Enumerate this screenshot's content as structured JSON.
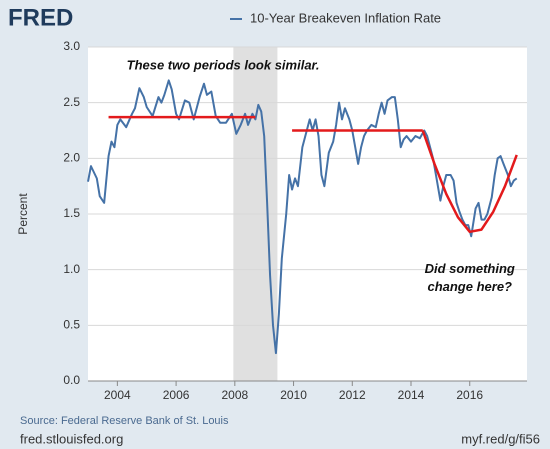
{
  "chart_data": {
    "type": "line",
    "logo": "FRED",
    "ylabel": "Percent",
    "source": "Source: Federal Reserve Bank of St. Louis",
    "footer_left": "fred.stlouisfed.org",
    "footer_right": "myf.red/g/fi56",
    "annotations": [
      {
        "text": "These two periods look similar.",
        "x": 2007.6,
        "y": 2.83
      },
      {
        "lines": [
          "Did something",
          "change here?"
        ],
        "x": 2016.0,
        "y": 1.0
      }
    ],
    "xlim": [
      2003.0,
      2017.95
    ],
    "xticks": [
      2004,
      2006,
      2008,
      2010,
      2012,
      2014,
      2016
    ],
    "ylim": [
      0,
      3
    ],
    "yticks": [
      {
        "value": 0,
        "label": "0.0"
      },
      0.5,
      {
        "value": 1,
        "label": "1.0"
      },
      1.5,
      {
        "value": 2,
        "label": "2.0"
      },
      2.5,
      {
        "value": 3,
        "label": "3.0"
      }
    ],
    "grid": true,
    "shaded_regions": [
      [
        2007.95,
        2009.45
      ]
    ],
    "series": [
      {
        "name": "10-Year Breakeven Inflation Rate",
        "color": "#4572a7",
        "x": [
          2003.0,
          2003.1,
          2003.3,
          2003.4,
          2003.55,
          2003.7,
          2003.8,
          2003.9,
          2004.0,
          2004.1,
          2004.3,
          2004.5,
          2004.6,
          2004.75,
          2004.9,
          2005.0,
          2005.2,
          2005.4,
          2005.5,
          2005.6,
          2005.75,
          2005.85,
          2006.0,
          2006.1,
          2006.3,
          2006.45,
          2006.6,
          2006.8,
          2006.95,
          2007.05,
          2007.2,
          2007.35,
          2007.5,
          2007.7,
          2007.9,
          2008.05,
          2008.2,
          2008.35,
          2008.45,
          2008.6,
          2008.7,
          2008.8,
          2008.9,
          2009.0,
          2009.1,
          2009.2,
          2009.3,
          2009.4,
          2009.5,
          2009.6,
          2009.75,
          2009.85,
          2009.95,
          2010.05,
          2010.15,
          2010.3,
          2010.45,
          2010.55,
          2010.65,
          2010.75,
          2010.85,
          2010.95,
          2011.05,
          2011.2,
          2011.35,
          2011.45,
          2011.55,
          2011.65,
          2011.75,
          2011.9,
          2012.0,
          2012.1,
          2012.2,
          2012.3,
          2012.4,
          2012.5,
          2012.65,
          2012.8,
          2012.9,
          2013.0,
          2013.1,
          2013.2,
          2013.35,
          2013.45,
          2013.55,
          2013.65,
          2013.75,
          2013.85,
          2014.0,
          2014.15,
          2014.3,
          2014.45,
          2014.55,
          2014.65,
          2014.75,
          2014.85,
          2015.0,
          2015.1,
          2015.2,
          2015.35,
          2015.45,
          2015.55,
          2015.65,
          2015.75,
          2015.85,
          2015.95,
          2016.05,
          2016.2,
          2016.3,
          2016.4,
          2016.5,
          2016.6,
          2016.75,
          2016.85,
          2016.95,
          2017.05,
          2017.15,
          2017.3,
          2017.4,
          2017.5,
          2017.6
        ],
        "values": [
          1.79,
          1.93,
          1.82,
          1.66,
          1.6,
          2.02,
          2.15,
          2.1,
          2.3,
          2.35,
          2.28,
          2.4,
          2.45,
          2.63,
          2.55,
          2.46,
          2.38,
          2.55,
          2.5,
          2.57,
          2.7,
          2.62,
          2.4,
          2.35,
          2.52,
          2.5,
          2.35,
          2.55,
          2.67,
          2.57,
          2.6,
          2.38,
          2.32,
          2.32,
          2.4,
          2.22,
          2.3,
          2.4,
          2.3,
          2.4,
          2.35,
          2.48,
          2.42,
          2.2,
          1.6,
          0.95,
          0.5,
          0.25,
          0.6,
          1.1,
          1.5,
          1.85,
          1.72,
          1.82,
          1.75,
          2.1,
          2.25,
          2.35,
          2.25,
          2.35,
          2.2,
          1.85,
          1.75,
          2.05,
          2.15,
          2.3,
          2.5,
          2.35,
          2.45,
          2.35,
          2.25,
          2.1,
          1.95,
          2.1,
          2.2,
          2.25,
          2.3,
          2.28,
          2.4,
          2.5,
          2.4,
          2.52,
          2.55,
          2.55,
          2.35,
          2.1,
          2.17,
          2.2,
          2.15,
          2.2,
          2.18,
          2.25,
          2.2,
          2.1,
          2.0,
          1.85,
          1.62,
          1.75,
          1.85,
          1.85,
          1.8,
          1.6,
          1.52,
          1.45,
          1.4,
          1.4,
          1.3,
          1.55,
          1.6,
          1.45,
          1.45,
          1.5,
          1.65,
          1.85,
          2.0,
          2.02,
          1.95,
          1.85,
          1.75,
          1.8,
          1.82
        ]
      }
    ],
    "overlays": [
      {
        "color": "#e31a1c",
        "x": [
          2003.7,
          2008.7
        ],
        "values": [
          2.37,
          2.37
        ]
      },
      {
        "color": "#e31a1c",
        "x": [
          2009.95,
          2014.4
        ],
        "values": [
          2.25,
          2.25
        ]
      },
      {
        "color": "#e31a1c",
        "x": [
          2014.4,
          2014.8,
          2015.2,
          2015.6,
          2016.0,
          2016.4,
          2016.8,
          2017.2,
          2017.6
        ],
        "values": [
          2.25,
          1.95,
          1.68,
          1.47,
          1.34,
          1.36,
          1.52,
          1.75,
          2.03
        ]
      }
    ]
  }
}
